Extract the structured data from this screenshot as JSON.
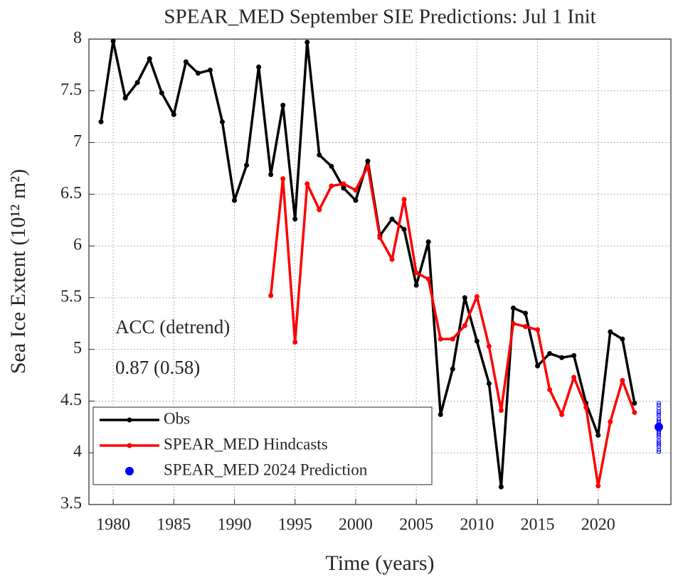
{
  "chart_data": {
    "type": "line",
    "title": "SPEAR_MED September SIE Predictions: Jul 1 Init",
    "xlabel": "Time (years)",
    "ylabel": "Sea Ice Extent (10¹² m²)",
    "annotations": [
      "ACC (detrend)",
      "0.87 (0.58)"
    ],
    "xlim": [
      1978,
      2026
    ],
    "ylim": [
      3.5,
      8
    ],
    "xticks": [
      1980,
      1985,
      1990,
      1995,
      2000,
      2005,
      2010,
      2015,
      2020
    ],
    "yticks": [
      3.5,
      4,
      4.5,
      5,
      5.5,
      6,
      6.5,
      7,
      7.5,
      8
    ],
    "grid": true,
    "legend": "lower-left",
    "series": [
      {
        "name": "Obs",
        "color": "#000000",
        "type": "line",
        "x": [
          1979,
          1980,
          1981,
          1982,
          1983,
          1984,
          1985,
          1986,
          1987,
          1988,
          1989,
          1990,
          1991,
          1992,
          1993,
          1994,
          1995,
          1996,
          1997,
          1998,
          1999,
          2000,
          2001,
          2002,
          2003,
          2004,
          2005,
          2006,
          2007,
          2008,
          2009,
          2010,
          2011,
          2012,
          2013,
          2014,
          2015,
          2016,
          2017,
          2018,
          2019,
          2020,
          2021,
          2022,
          2023
        ],
        "values": [
          7.2,
          7.98,
          7.43,
          7.58,
          7.81,
          7.48,
          7.27,
          7.78,
          7.67,
          7.7,
          7.2,
          6.44,
          6.78,
          7.73,
          6.69,
          7.36,
          6.26,
          7.97,
          6.88,
          6.77,
          6.56,
          6.44,
          6.82,
          6.1,
          6.26,
          6.16,
          5.62,
          6.04,
          4.37,
          4.81,
          5.5,
          5.08,
          4.67,
          3.67,
          5.4,
          5.35,
          4.84,
          4.96,
          4.92,
          4.94,
          4.48,
          4.17,
          5.17,
          5.1,
          4.48
        ]
      },
      {
        "name": "SPEAR_MED Hindcasts",
        "color": "#ff0000",
        "type": "line",
        "x": [
          1993,
          1994,
          1995,
          1996,
          1997,
          1998,
          1999,
          2000,
          2001,
          2002,
          2003,
          2004,
          2005,
          2006,
          2007,
          2008,
          2009,
          2010,
          2011,
          2012,
          2013,
          2014,
          2015,
          2016,
          2017,
          2018,
          2019,
          2020,
          2021,
          2022,
          2023
        ],
        "values": [
          5.52,
          6.65,
          5.07,
          6.6,
          6.35,
          6.58,
          6.6,
          6.54,
          6.77,
          6.08,
          5.87,
          6.45,
          5.74,
          5.68,
          5.1,
          5.1,
          5.23,
          5.51,
          5.03,
          4.41,
          5.25,
          5.22,
          5.19,
          4.61,
          4.37,
          4.73,
          4.44,
          3.68,
          4.3,
          4.7,
          4.39
        ]
      },
      {
        "name": "SPEAR_MED 2024 Prediction",
        "color": "#0000ff",
        "type": "scatter",
        "x": [
          2025
        ],
        "values": [
          4.25
        ],
        "members": [
          4.01,
          4.03,
          4.06,
          4.08,
          4.1,
          4.12,
          4.15,
          4.17,
          4.19,
          4.21,
          4.23,
          4.25,
          4.27,
          4.29,
          4.31,
          4.33,
          4.36,
          4.38,
          4.4,
          4.43,
          4.46,
          4.48
        ]
      }
    ]
  }
}
